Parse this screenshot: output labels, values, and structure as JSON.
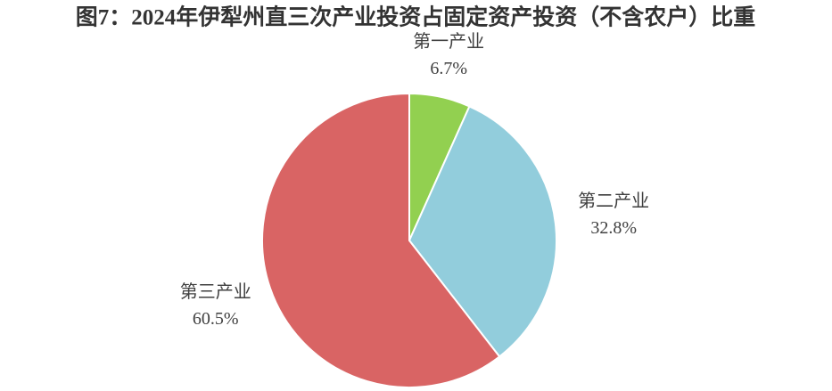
{
  "chart_data": {
    "type": "pie",
    "title": "图7：2024年伊犁州直三次产业投资占固定资产投资（不含农户）比重",
    "categories": [
      "第一产业",
      "第二产业",
      "第三产业"
    ],
    "values": [
      6.7,
      32.8,
      60.5
    ],
    "value_labels": [
      "6.7%",
      "32.8%",
      "60.5%"
    ],
    "colors": [
      "#92d050",
      "#92cddc",
      "#d96464"
    ]
  }
}
